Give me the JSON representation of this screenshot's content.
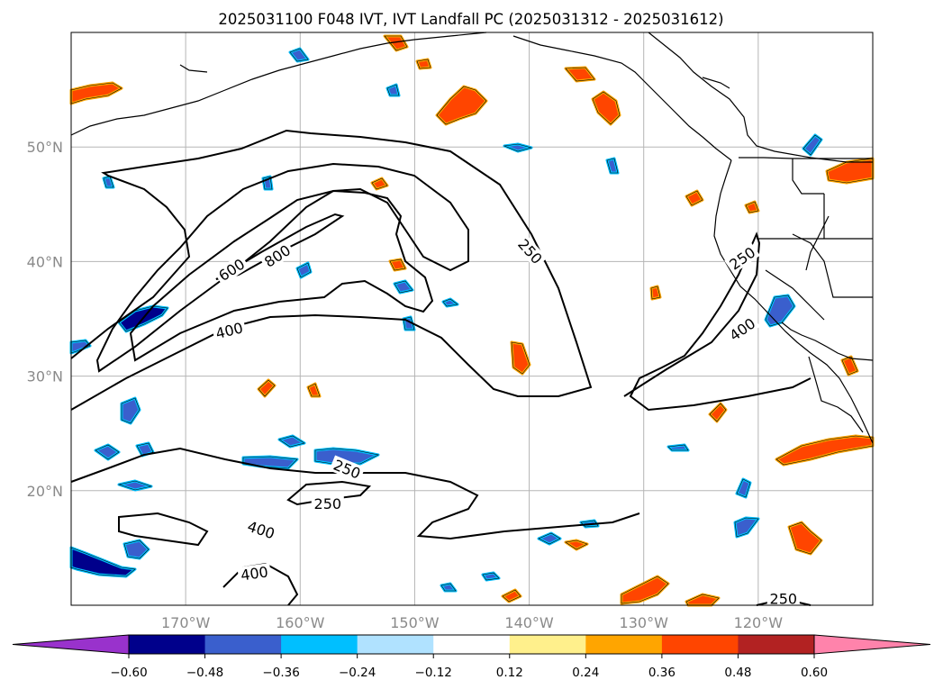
{
  "chart_data": {
    "type": "contour-map",
    "title": "2025031100 F048 IVT, IVT Landfall PC (2025031312 - 2025031612)",
    "lon_range": [
      -180,
      -110
    ],
    "lat_range": [
      10,
      60
    ],
    "lon_ticks": [
      {
        "value": -170,
        "label": "170°W"
      },
      {
        "value": -160,
        "label": "160°W"
      },
      {
        "value": -150,
        "label": "150°W"
      },
      {
        "value": -140,
        "label": "140°W"
      },
      {
        "value": -130,
        "label": "130°W"
      },
      {
        "value": -120,
        "label": "120°W"
      }
    ],
    "lat_ticks": [
      {
        "value": 50,
        "label": "50°N"
      },
      {
        "value": 40,
        "label": "40°N"
      },
      {
        "value": 30,
        "label": "30°N"
      },
      {
        "value": 20,
        "label": "20°N"
      }
    ],
    "grid": true,
    "contour_levels": [
      250,
      400,
      600,
      800
    ],
    "contour_labels": [
      {
        "text": "800",
        "lon": -162,
        "lat": 40.5,
        "rot": -33
      },
      {
        "text": "600",
        "lon": -166,
        "lat": 39.3,
        "rot": -33
      },
      {
        "text": "400",
        "lon": -166.2,
        "lat": 34.0,
        "rot": -14
      },
      {
        "text": "250",
        "lon": -139.9,
        "lat": 40.9,
        "rot": 48
      },
      {
        "text": "250",
        "lon": -121.4,
        "lat": 40.3,
        "rot": -35
      },
      {
        "text": "400",
        "lon": -121.4,
        "lat": 34.1,
        "rot": -35
      },
      {
        "text": "250",
        "lon": -155.9,
        "lat": 21.9,
        "rot": 22
      },
      {
        "text": "250",
        "lon": -157.6,
        "lat": 18.9,
        "rot": 0
      },
      {
        "text": "400",
        "lon": -163.4,
        "lat": 16.6,
        "rot": 18
      },
      {
        "text": "400",
        "lon": -164.0,
        "lat": 12.8,
        "rot": -8
      },
      {
        "text": "250",
        "lon": -117.8,
        "lat": 10.6,
        "rot": 0
      }
    ],
    "colorbar": {
      "ticks": [
        "−0.60",
        "−0.48",
        "−0.36",
        "−0.24",
        "−0.12",
        "0.12",
        "0.24",
        "0.36",
        "0.48",
        "0.60"
      ],
      "colors": [
        "#9932cc",
        "#00008b",
        "#3a5fcd",
        "#00bfff",
        "#b0e2ff",
        "#ffffff",
        "#fff08c",
        "#ffa500",
        "#ff4500",
        "#b22222",
        "#ff83ab"
      ]
    }
  }
}
